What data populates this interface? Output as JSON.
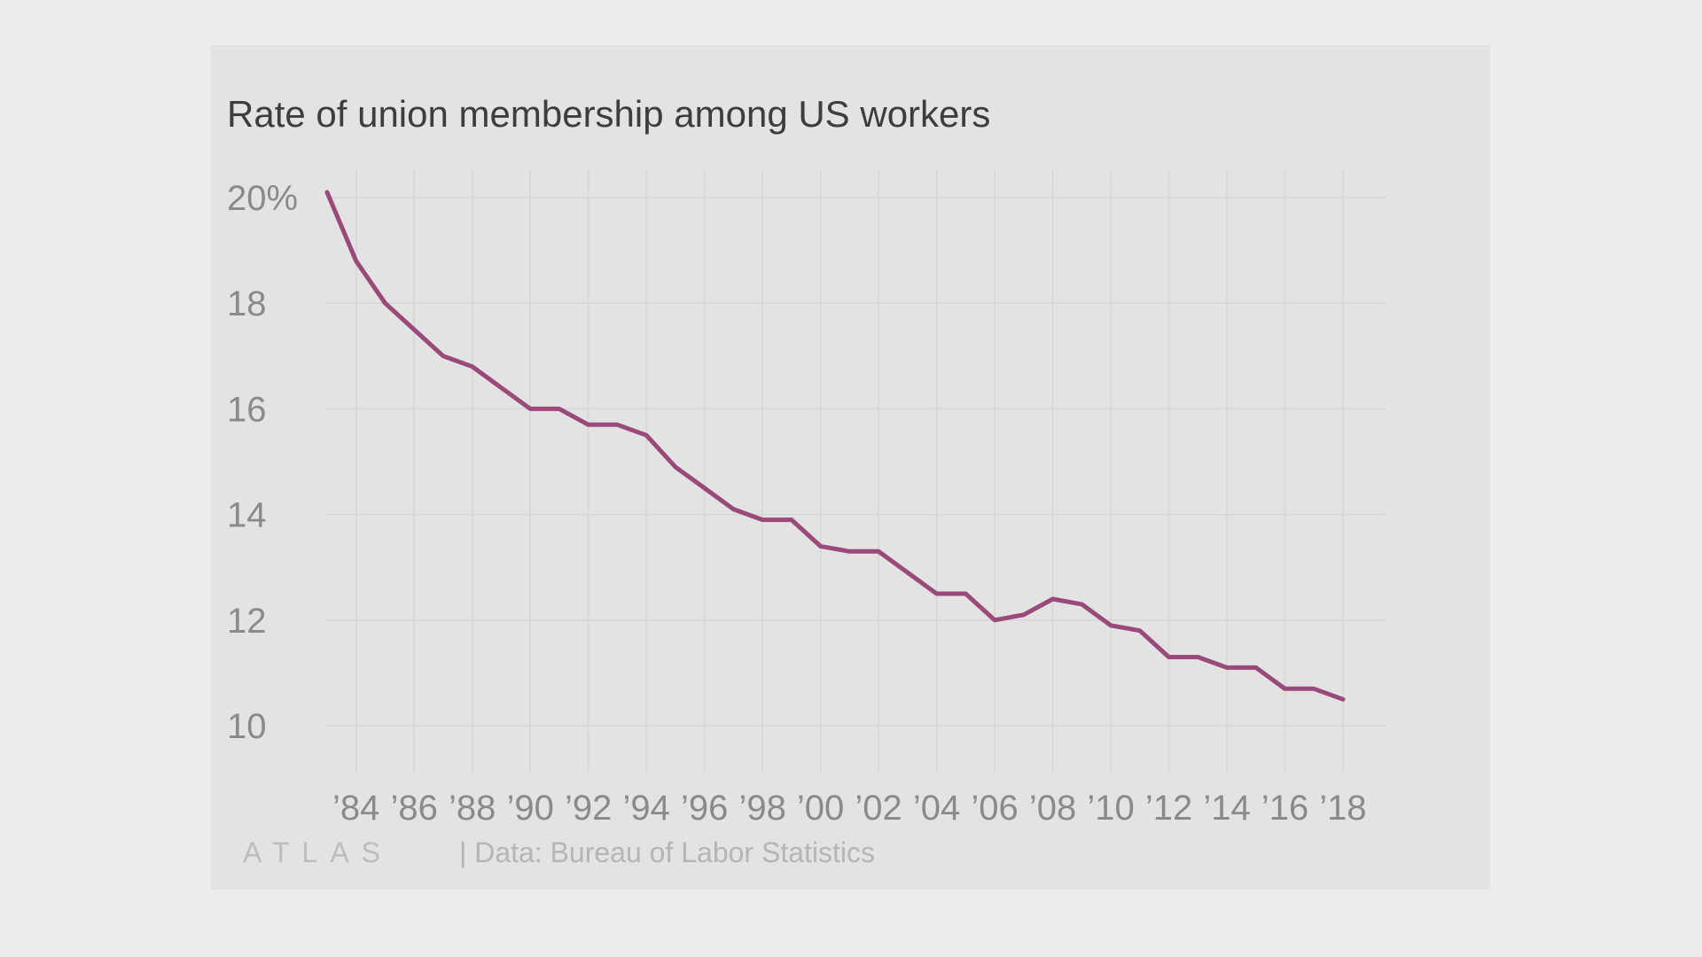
{
  "chart_data": {
    "type": "line",
    "title": "Rate of union membership among US workers",
    "x": [
      1983,
      1984,
      1985,
      1986,
      1987,
      1988,
      1989,
      1990,
      1991,
      1992,
      1993,
      1994,
      1995,
      1996,
      1997,
      1998,
      1999,
      2000,
      2001,
      2002,
      2003,
      2004,
      2005,
      2006,
      2007,
      2008,
      2009,
      2010,
      2011,
      2012,
      2013,
      2014,
      2015,
      2016,
      2017,
      2018
    ],
    "series": [
      {
        "values": [
          20.1,
          18.8,
          18.0,
          17.5,
          17.0,
          16.8,
          16.4,
          16.0,
          16.0,
          15.7,
          15.7,
          15.5,
          14.9,
          14.5,
          14.1,
          13.9,
          13.9,
          13.4,
          13.3,
          13.3,
          12.9,
          12.5,
          12.5,
          12.0,
          12.1,
          12.4,
          12.3,
          11.9,
          11.8,
          11.3,
          11.3,
          11.1,
          11.1,
          10.7,
          10.7,
          10.5
        ],
        "color": "#9a4a78"
      }
    ],
    "xlabel": "",
    "ylabel": "",
    "xlim": [
      1983,
      2018
    ],
    "ylim": [
      10,
      20
    ],
    "yticks": [
      10,
      12,
      14,
      16,
      18,
      20
    ],
    "ytick_labels": [
      "10",
      "12",
      "14",
      "16",
      "18",
      "20%"
    ],
    "xticks": [
      1984,
      1986,
      1988,
      1990,
      1992,
      1994,
      1996,
      1998,
      2000,
      2002,
      2004,
      2006,
      2008,
      2010,
      2012,
      2014,
      2016,
      2018
    ],
    "xtick_labels": [
      "’84",
      "’86",
      "’88",
      "’90",
      "’92",
      "’94",
      "’96",
      "’98",
      "’00",
      "’02",
      "’04",
      "’06",
      "’08",
      "’10",
      "’12",
      "’14",
      "’16",
      "’18"
    ],
    "grid": true,
    "legend": "none"
  },
  "footer": {
    "logo_text": "ATLAS",
    "source": "| Data: Bureau of Labor Statistics"
  },
  "colors": {
    "background": "#ececec",
    "card": "#e3e3e3",
    "gridline": "#d6d6d6",
    "line": "#9a4a78"
  }
}
